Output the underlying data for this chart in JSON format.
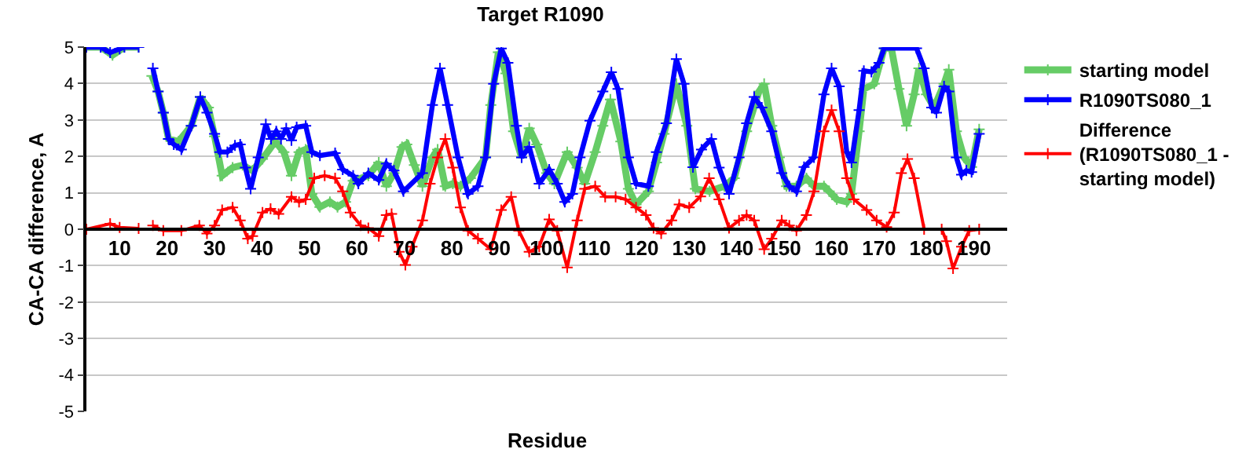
{
  "chart_data": {
    "type": "line",
    "title": "Target R1090",
    "xlabel": "Residue",
    "ylabel": "CA-CA difference, A",
    "xlim": [
      3,
      197
    ],
    "xticks": [
      10,
      20,
      30,
      40,
      50,
      60,
      70,
      80,
      90,
      100,
      110,
      120,
      130,
      140,
      150,
      160,
      170,
      180,
      190
    ],
    "ylim": [
      -5,
      5
    ],
    "yticks": [
      -5,
      -4,
      -3,
      -2,
      -1,
      0,
      1,
      2,
      3,
      4,
      5
    ],
    "grid": "y",
    "legend": "right",
    "marker": "cross",
    "line_style": "solid",
    "series": [
      {
        "name": "starting model",
        "color": "#66cc66",
        "x": [
          3,
          6,
          8.5,
          11,
          14,
          15.5,
          16.8,
          18.1,
          19.2,
          20.3,
          22.4,
          25.1,
          27,
          28.7,
          30,
          31.6,
          33.8,
          35.9,
          38,
          40.1,
          42.8,
          44.6,
          46.2,
          47.8,
          49.2,
          50.5,
          52.2,
          54.3,
          55.9,
          57.6,
          59.2,
          62.4,
          64.6,
          66.2,
          67.8,
          69.5,
          70.5,
          72.1,
          73.8,
          75.9,
          77,
          78.6,
          80.2,
          81.8,
          83.9,
          87.1,
          88.2,
          89.8,
          91.4,
          93,
          94.7,
          96.3,
          97.9,
          100,
          101.6,
          104.3,
          106.4,
          108,
          110.2,
          111.8,
          113.4,
          115.6,
          117.2,
          118.8,
          121.4,
          123.1,
          124.7,
          127.3,
          129.5,
          131.3,
          134.3,
          137.4,
          139.5,
          142.1,
          144.7,
          145.8,
          147.4,
          149,
          150.5,
          152.6,
          154.7,
          156.3,
          158.4,
          159.5,
          161.1,
          163.2,
          164.2,
          165.8,
          166.8,
          169,
          171.1,
          172.6,
          174.2,
          175.8,
          177.4,
          178.4,
          180,
          181.6,
          183.7,
          184.7,
          186.3,
          187.9,
          189.5,
          191.1
        ],
        "values": [
          5,
          5,
          4.78,
          5,
          5,
          null,
          4.21,
          3.78,
          3.2,
          2.48,
          2.41,
          2.84,
          3.63,
          3.34,
          2.55,
          1.47,
          1.69,
          1.76,
          1.61,
          1.93,
          2.41,
          2.12,
          1.47,
          2.12,
          2.19,
          0.97,
          0.61,
          0.75,
          0.61,
          0.75,
          1.33,
          1.47,
          1.83,
          1.18,
          1.54,
          2.26,
          2.33,
          1.76,
          1.18,
          1.97,
          2.19,
          1.18,
          1.25,
          1.18,
          1.4,
          1.97,
          3.41,
          4.86,
          4.28,
          2.69,
          1.97,
          2.77,
          2.33,
          1.54,
          1.25,
          2.12,
          1.69,
          1.25,
          2.12,
          2.84,
          3.56,
          2.41,
          1.11,
          0.68,
          1.04,
          1.83,
          2.62,
          3.99,
          2.84,
          1.11,
          1.04,
          1.18,
          1.4,
          2.69,
          3.78,
          3.99,
          2.84,
          1.97,
          1.18,
          1.18,
          1.4,
          1.18,
          1.18,
          1.04,
          0.82,
          0.75,
          0.97,
          2.69,
          3.85,
          3.99,
          4.97,
          4.97,
          3.85,
          2.84,
          3.7,
          4.42,
          3.7,
          3.34,
          3.99,
          4.38,
          2.69,
          1.97,
          1.71,
          2.74
        ]
      },
      {
        "name": "R1090TS080_1",
        "color": "#0000ff",
        "x": [
          3,
          6,
          8,
          10,
          11,
          14,
          15.5,
          17,
          18.1,
          19.2,
          20.3,
          21.4,
          23,
          25.1,
          27,
          28.4,
          30,
          31.1,
          32.7,
          34.3,
          35.4,
          36.5,
          37.6,
          39.2,
          40.8,
          41.9,
          43,
          44,
          45.1,
          46.2,
          47.3,
          49.2,
          50.5,
          52.2,
          55.4,
          57,
          59.2,
          60.3,
          62.4,
          64.6,
          66.2,
          67.8,
          69.8,
          73.8,
          75.9,
          77.5,
          79.1,
          81.3,
          83.4,
          85.5,
          87.1,
          88.8,
          90.4,
          91.8,
          93.6,
          94.7,
          96.3,
          98.4,
          100.5,
          102.2,
          103.8,
          105.4,
          107,
          109.1,
          111.8,
          113.6,
          115,
          117.2,
          118.8,
          121.4,
          123.1,
          125.2,
          127.3,
          128.9,
          130.8,
          132.6,
          134.7,
          136.3,
          138.4,
          140.5,
          142.1,
          143.7,
          145.3,
          147.4,
          149.5,
          151.1,
          152.6,
          154.2,
          156.3,
          158.4,
          160,
          161.6,
          163.2,
          164.2,
          165.8,
          166.8,
          168.4,
          170,
          171.1,
          177.9,
          179.5,
          181.1,
          182.1,
          183.7,
          184.7,
          186.3,
          187.4,
          188.4,
          189.5,
          191.1
        ],
        "values": [
          5,
          5,
          4.85,
          4.95,
          5,
          5,
          null,
          4.42,
          3.78,
          3.2,
          2.48,
          2.33,
          2.19,
          2.84,
          3.63,
          3.2,
          2.62,
          2.12,
          2.12,
          2.3,
          2.33,
          1.69,
          1.11,
          1.97,
          2.88,
          2.48,
          2.69,
          2.48,
          2.77,
          2.44,
          2.8,
          2.84,
          2.12,
          2.02,
          2.09,
          1.64,
          1.47,
          1.25,
          1.54,
          1.35,
          1.8,
          1.61,
          1.04,
          1.54,
          3.41,
          4.42,
          3.41,
          1.97,
          0.97,
          1.18,
          1.97,
          3.99,
          4.96,
          4.57,
          2.84,
          1.97,
          2.26,
          1.25,
          1.64,
          1.25,
          0.75,
          0.97,
          1.97,
          2.98,
          3.78,
          4.31,
          3.85,
          1.97,
          1.25,
          1.18,
          2.12,
          2.91,
          4.67,
          3.99,
          1.7,
          2.19,
          2.48,
          1.69,
          0.97,
          1.97,
          2.91,
          3.63,
          3.34,
          2.69,
          1.54,
          1.18,
          1.04,
          1.71,
          1.97,
          3.7,
          4.42,
          3.92,
          2.12,
          1.83,
          3.27,
          4.35,
          4.32,
          4.57,
          4.97,
          4.97,
          4.42,
          3.34,
          3.2,
          3.92,
          3.78,
          1.97,
          1.5,
          1.61,
          1.57,
          2.62
        ]
      },
      {
        "name": "Difference\n(R1090TS080_1 -\nstarting model)",
        "color": "#ff0000",
        "x": [
          3,
          8,
          10,
          14,
          15.5,
          17,
          19.2,
          23,
          26.8,
          28.4,
          30,
          31.6,
          33.8,
          35.4,
          37,
          38,
          40.1,
          41.8,
          43.5,
          46.2,
          47.8,
          49.2,
          51,
          53.2,
          55.4,
          57,
          58.6,
          60.8,
          62.4,
          64.6,
          66.2,
          67.3,
          68.9,
          70.2,
          71.6,
          73.8,
          75.4,
          77,
          78.6,
          80.2,
          81.8,
          83.4,
          85.5,
          88.2,
          90.4,
          92.5,
          94.1,
          96.3,
          98.4,
          100.5,
          102.2,
          104.3,
          106.4,
          108,
          110.2,
          112.3,
          114.5,
          116.6,
          118.8,
          120.9,
          122.5,
          124.1,
          126.3,
          127.9,
          130,
          132.4,
          134.2,
          136.3,
          138.4,
          140.5,
          142.1,
          143.7,
          145.8,
          147.4,
          149.5,
          151.1,
          152.6,
          154.7,
          156.3,
          158.4,
          160,
          161.6,
          163.2,
          164.7,
          167.4,
          169.5,
          171.6,
          173.2,
          174.7,
          176,
          177.4,
          179.5,
          183.2,
          184.2,
          185.6,
          187.4,
          189,
          191.1
        ],
        "values": [
          0,
          0.15,
          0.05,
          0.02,
          null,
          0.1,
          -0.04,
          -0.04,
          0.1,
          -0.12,
          0.1,
          0.53,
          0.6,
          0.24,
          -0.26,
          -0.19,
          0.46,
          0.56,
          0.42,
          0.89,
          0.75,
          0.82,
          1.4,
          1.47,
          1.4,
          1.04,
          0.46,
          0.1,
          0.03,
          -0.19,
          0.39,
          0.42,
          -0.62,
          -0.98,
          -0.48,
          0.24,
          1.25,
          1.97,
          2.48,
          1.69,
          0.6,
          -0.04,
          -0.26,
          -0.55,
          0.53,
          0.89,
          -0.04,
          -0.62,
          -0.48,
          0.27,
          -0.04,
          -1.05,
          0.24,
          1.11,
          1.18,
          0.89,
          0.89,
          0.82,
          0.6,
          0.39,
          0.03,
          -0.12,
          0.24,
          0.68,
          0.6,
          0.9,
          1.4,
          0.82,
          0.03,
          0.24,
          0.39,
          0.24,
          -0.55,
          -0.26,
          0.24,
          0.1,
          -0.04,
          0.39,
          1.04,
          2.69,
          3.27,
          2.69,
          1.4,
          0.82,
          0.53,
          0.24,
          0.06,
          0.46,
          1.54,
          1.93,
          1.4,
          0,
          0,
          -0.33,
          -1.08,
          -0.48,
          -0.04,
          0
        ]
      }
    ]
  }
}
